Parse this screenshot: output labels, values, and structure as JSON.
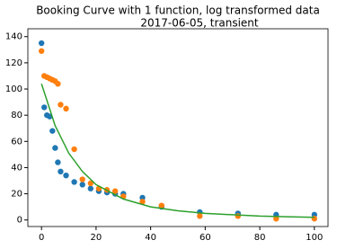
{
  "chart_data": {
    "type": "scatter",
    "title": "Booking Curve with 1 function, log transformed data",
    "subtitle": "2017-06-05, transient",
    "xlim": [
      -5,
      105
    ],
    "xticks": [
      0,
      20,
      40,
      60,
      80,
      100
    ],
    "ylim": [
      -5,
      146
    ],
    "yticks": [
      0,
      20,
      40,
      60,
      80,
      100,
      120,
      140
    ],
    "series": [
      {
        "type": "scatter",
        "color": "#1f77b4",
        "x": [
          0,
          1,
          2,
          3,
          4,
          5,
          6,
          7,
          9,
          12,
          15,
          18,
          21,
          24,
          27,
          30,
          37,
          44,
          58,
          72,
          86,
          100
        ],
        "values": [
          135,
          86,
          80,
          79,
          68,
          55,
          44,
          37,
          34,
          29,
          27,
          24,
          22,
          21,
          20,
          20,
          17,
          10,
          6,
          5,
          4,
          4
        ]
      },
      {
        "type": "scatter",
        "color": "#ff7f0e",
        "x": [
          0,
          1,
          2,
          3,
          4,
          5,
          6,
          7,
          9,
          12,
          15,
          18,
          21,
          24,
          27,
          30,
          37,
          44,
          58,
          72,
          86,
          100
        ],
        "values": [
          129,
          110,
          109,
          108,
          107,
          106,
          104,
          88,
          85,
          54,
          31,
          28,
          24,
          23,
          22,
          18,
          14,
          11,
          3,
          3,
          1,
          1
        ]
      },
      {
        "type": "line",
        "color": "#2ca02c",
        "x": [
          0,
          5,
          10,
          15,
          20,
          30,
          40,
          50,
          60,
          70,
          80,
          90,
          100
        ],
        "values": [
          104,
          72,
          51,
          37,
          27,
          16,
          10,
          7,
          5,
          4,
          3,
          2.5,
          2
        ]
      }
    ]
  }
}
